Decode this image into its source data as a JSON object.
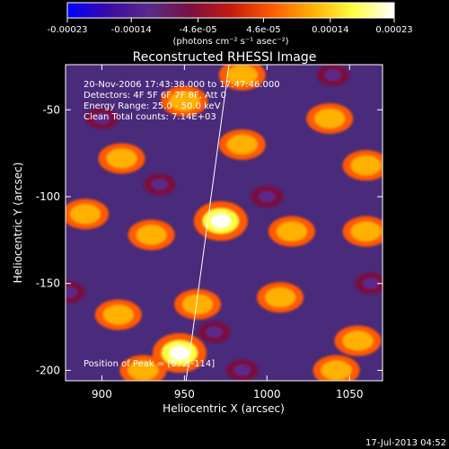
{
  "chart_data": {
    "type": "heatmap",
    "colorbar": {
      "ticks": [
        "-0.00023",
        "-0.00014",
        "-4.6e-05",
        "4.6e-05",
        "0.00014",
        "0.00023"
      ],
      "unit_label": "(photons cm⁻² s⁻¹ asec⁻²)",
      "range": [
        -0.00023,
        0.00023
      ],
      "colors": [
        "#0000ff",
        "#3a0aa6",
        "#5a2a8a",
        "#7a1040",
        "#c41a10",
        "#ff5a00",
        "#ffb000",
        "#ffff40",
        "#ffffff"
      ]
    },
    "title": "Reconstructed RHESSI Image",
    "annotations": [
      "20-Nov-2006 17:43:38.000 to 17:47:46.000",
      "Detectors: 4F 5F 6F 7F 8F, Att 0",
      "Energy Range: 25.0 - 50.0 keV",
      "Clean     Total counts: 7.14E+03"
    ],
    "peak_label": "Position of Peak = [972,-114]",
    "peak": [
      972,
      -114
    ],
    "xlabel": "Heliocentric X (arcsec)",
    "ylabel": "Heliocentric Y (arcsec)",
    "x_ticks": [
      "900",
      "950",
      "1000",
      "1050"
    ],
    "y_ticks": [
      "-50",
      "-100",
      "-150",
      "-200"
    ],
    "xlim": [
      878,
      1070
    ],
    "ylim": [
      -206,
      -24
    ],
    "limb_line": [
      [
        951,
        -206
      ],
      [
        977,
        -24
      ]
    ],
    "sources": [
      {
        "x": 972,
        "y": -114,
        "v": 0.00023
      },
      {
        "x": 947,
        "y": -190,
        "v": 0.00023
      },
      {
        "x": 958,
        "y": -162,
        "v": 0.00014
      },
      {
        "x": 1008,
        "y": -158,
        "v": 0.00014
      },
      {
        "x": 1055,
        "y": -183,
        "v": 0.00014
      },
      {
        "x": 1060,
        "y": -120,
        "v": 0.00014
      },
      {
        "x": 1015,
        "y": -120,
        "v": 0.00014
      },
      {
        "x": 930,
        "y": -122,
        "v": 0.00014
      },
      {
        "x": 890,
        "y": -110,
        "v": 0.00014
      },
      {
        "x": 985,
        "y": -70,
        "v": 0.00014
      },
      {
        "x": 1038,
        "y": -55,
        "v": 0.00014
      },
      {
        "x": 910,
        "y": -168,
        "v": 0.00014
      },
      {
        "x": 1042,
        "y": -200,
        "v": 0.00014
      },
      {
        "x": 912,
        "y": -78,
        "v": 0.00014
      },
      {
        "x": 950,
        "y": -45,
        "v": 0.00014
      },
      {
        "x": 1060,
        "y": -82,
        "v": 0.00014
      },
      {
        "x": 925,
        "y": -200,
        "v": 0.00014
      },
      {
        "x": 985,
        "y": -30,
        "v": 0.00014
      },
      {
        "x": 1040,
        "y": -30,
        "v": -0.00014
      },
      {
        "x": 1000,
        "y": -100,
        "v": -0.00014
      },
      {
        "x": 968,
        "y": -178,
        "v": -0.00014
      },
      {
        "x": 880,
        "y": -155,
        "v": -0.00014
      },
      {
        "x": 1063,
        "y": -150,
        "v": -0.00014
      },
      {
        "x": 935,
        "y": -93,
        "v": -0.00014
      },
      {
        "x": 985,
        "y": -200,
        "v": -0.00014
      },
      {
        "x": 900,
        "y": -55,
        "v": -0.00014
      }
    ]
  },
  "footer": {
    "timestamp": "17-Jul-2013 04:52"
  }
}
